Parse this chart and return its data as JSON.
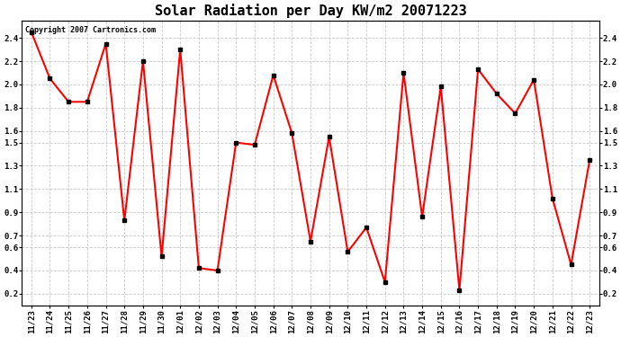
{
  "title": "Solar Radiation per Day KW/m2 20071223",
  "copyright": "Copyright 2007 Cartronics.com",
  "labels": [
    "11/23",
    "11/24",
    "11/25",
    "11/26",
    "11/27",
    "11/28",
    "11/29",
    "11/30",
    "12/01",
    "12/02",
    "12/03",
    "12/04",
    "12/05",
    "12/06",
    "12/07",
    "12/08",
    "12/09",
    "12/10",
    "12/11",
    "12/12",
    "12/13",
    "12/14",
    "12/15",
    "12/16",
    "12/17",
    "12/18",
    "12/19",
    "12/20",
    "12/21",
    "12/22",
    "12/23"
  ],
  "values": [
    2.45,
    2.05,
    1.85,
    1.85,
    2.35,
    0.83,
    2.2,
    0.52,
    2.3,
    0.42,
    0.4,
    1.5,
    1.48,
    2.08,
    1.58,
    0.65,
    1.55,
    0.56,
    0.77,
    0.3,
    2.1,
    0.86,
    1.98,
    0.23,
    2.13,
    1.92,
    1.75,
    2.04,
    1.02,
    0.45,
    1.35
  ],
  "line_color": "#ff0000",
  "marker_color": "#000000",
  "bg_color": "#ffffff",
  "grid_color": "#c8c8c8",
  "ylim_min": 0.1,
  "ylim_max": 2.55,
  "yticks": [
    0.2,
    0.4,
    0.6,
    0.7,
    0.9,
    1.1,
    1.3,
    1.5,
    1.6,
    1.8,
    2.0,
    2.2,
    2.4
  ],
  "ytick_labels": [
    "0.2",
    "0.4",
    "0.6",
    "0.7",
    "0.9",
    "1.1",
    "1.3",
    "1.5",
    "1.6",
    "1.8",
    "2.0",
    "2.2",
    "2.4"
  ],
  "title_fontsize": 11,
  "copyright_fontsize": 6,
  "tick_fontsize": 6.5,
  "line_width": 1.5,
  "marker_size": 3
}
